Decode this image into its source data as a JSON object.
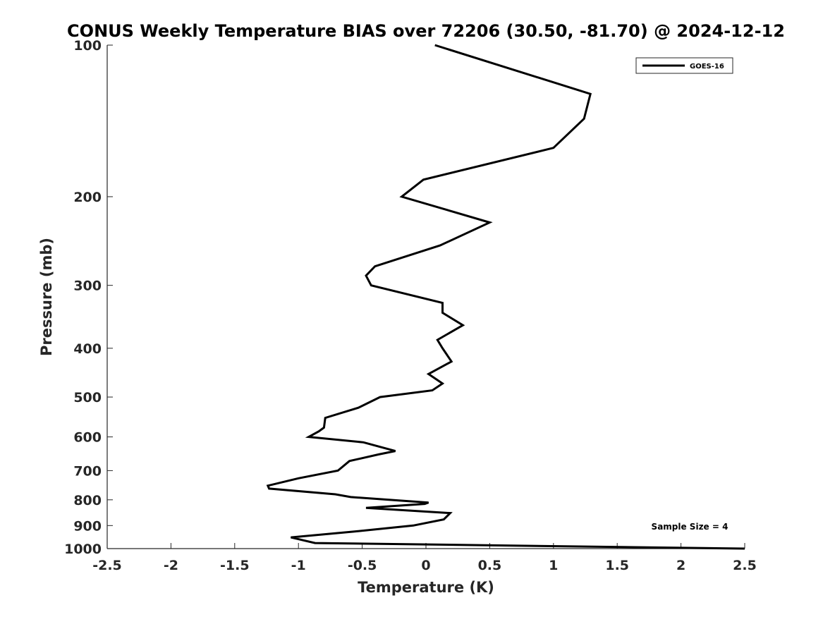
{
  "chart_data": {
    "type": "line",
    "title": "CONUS Weekly Temperature BIAS over 72206 (30.50, -81.70) @ 2024-12-12",
    "xlabel": "Temperature (K)",
    "ylabel": "Pressure (mb)",
    "xlim": [
      -2.5,
      2.5
    ],
    "ylim": [
      1000,
      100
    ],
    "y_scale": "log",
    "y_reversed": true,
    "grid": false,
    "legend_position": "top-right",
    "x_ticks": [
      -2.5,
      -2,
      -1.5,
      -1,
      -0.5,
      0,
      0.5,
      1,
      1.5,
      2,
      2.5
    ],
    "x_tick_labels": [
      "-2.5",
      "-2",
      "-1.5",
      "-1",
      "-0.5",
      "0",
      "0.5",
      "1",
      "1.5",
      "2",
      "2.5"
    ],
    "y_ticks": [
      100,
      200,
      300,
      400,
      500,
      600,
      700,
      800,
      900,
      1000
    ],
    "y_tick_labels": [
      "100",
      "200",
      "300",
      "400",
      "500",
      "600",
      "700",
      "800",
      "900",
      "1000"
    ],
    "annotations": [
      "Sample Size = 4"
    ],
    "series": [
      {
        "name": "GOES-16",
        "color": "#000000",
        "points": [
          {
            "x": 0.07,
            "p": 100
          },
          {
            "x": 1.29,
            "p": 125
          },
          {
            "x": 1.24,
            "p": 140
          },
          {
            "x": 1.0,
            "p": 160
          },
          {
            "x": -0.02,
            "p": 185
          },
          {
            "x": -0.19,
            "p": 200
          },
          {
            "x": 0.5,
            "p": 225
          },
          {
            "x": 0.11,
            "p": 250
          },
          {
            "x": -0.4,
            "p": 275
          },
          {
            "x": -0.47,
            "p": 287
          },
          {
            "x": -0.43,
            "p": 300
          },
          {
            "x": 0.13,
            "p": 325
          },
          {
            "x": 0.13,
            "p": 340
          },
          {
            "x": 0.29,
            "p": 360
          },
          {
            "x": 0.09,
            "p": 385
          },
          {
            "x": 0.13,
            "p": 400
          },
          {
            "x": 0.2,
            "p": 425
          },
          {
            "x": 0.02,
            "p": 450
          },
          {
            "x": 0.13,
            "p": 470
          },
          {
            "x": 0.05,
            "p": 485
          },
          {
            "x": -0.36,
            "p": 500
          },
          {
            "x": -0.53,
            "p": 525
          },
          {
            "x": -0.79,
            "p": 550
          },
          {
            "x": -0.8,
            "p": 575
          },
          {
            "x": -0.84,
            "p": 585
          },
          {
            "x": -0.92,
            "p": 600
          },
          {
            "x": -0.49,
            "p": 615
          },
          {
            "x": -0.24,
            "p": 640
          },
          {
            "x": -0.37,
            "p": 650
          },
          {
            "x": -0.6,
            "p": 670
          },
          {
            "x": -0.69,
            "p": 700
          },
          {
            "x": -1.0,
            "p": 725
          },
          {
            "x": -1.24,
            "p": 750
          },
          {
            "x": -1.23,
            "p": 760
          },
          {
            "x": -0.71,
            "p": 780
          },
          {
            "x": -0.59,
            "p": 790
          },
          {
            "x": 0.02,
            "p": 810
          },
          {
            "x": -0.01,
            "p": 815
          },
          {
            "x": -0.47,
            "p": 830
          },
          {
            "x": 0.19,
            "p": 850
          },
          {
            "x": 0.14,
            "p": 875
          },
          {
            "x": -0.1,
            "p": 900
          },
          {
            "x": -0.56,
            "p": 925
          },
          {
            "x": -1.06,
            "p": 950
          },
          {
            "x": -0.87,
            "p": 975
          },
          {
            "x": 2.5,
            "p": 1000
          }
        ]
      }
    ]
  }
}
